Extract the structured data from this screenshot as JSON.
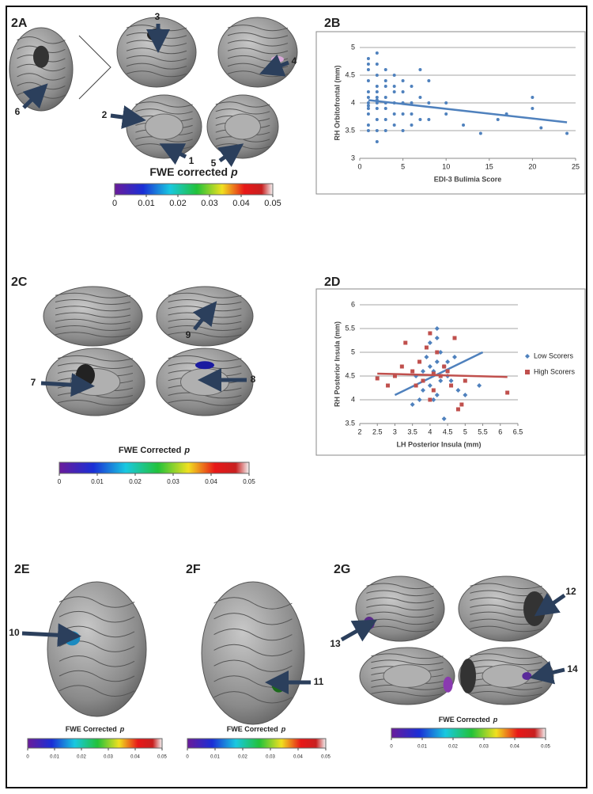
{
  "panels": [
    "2A",
    "2B",
    "2C",
    "2D",
    "2E",
    "2F",
    "2G"
  ],
  "annotations": [
    "3",
    "4",
    "2",
    "1",
    "5",
    "6",
    "9",
    "7",
    "8",
    "10",
    "11",
    "12",
    "13",
    "14"
  ],
  "colorbars": [
    {
      "title": "FWE corrected",
      "title_italic": "p",
      "ticks": [
        0,
        0.01,
        0.02,
        0.03,
        0.04,
        0.05
      ]
    },
    {
      "title": "FWE Corrected",
      "title_italic": "p",
      "ticks": [
        0,
        0.01,
        0.02,
        0.03,
        0.04,
        0.05
      ]
    },
    {
      "title": "FWE Corrected",
      "title_italic": "p",
      "ticks": [
        0,
        0.01,
        0.02,
        0.03,
        0.04,
        0.05
      ]
    },
    {
      "title": "FWE Corrected",
      "title_italic": "p",
      "ticks": [
        0,
        0.01,
        0.02,
        0.03,
        0.04,
        0.05
      ]
    },
    {
      "title": "FWE Corrected",
      "title_italic": "p",
      "ticks": [
        0,
        0.01,
        0.02,
        0.03,
        0.04,
        0.05
      ]
    }
  ],
  "chart_data": [
    {
      "type": "scatter",
      "x_label": "EDI-3 Bulimia Score",
      "y_label": "RH Orbitofrontal (mm)",
      "xlim": [
        0,
        25
      ],
      "xticks": [
        0,
        5,
        10,
        15,
        20,
        25
      ],
      "ylim": [
        3,
        5
      ],
      "yticks": [
        3,
        3.5,
        4,
        4.5,
        5
      ],
      "grid": true,
      "series": [
        {
          "color": "#4f81bd",
          "marker": "circle",
          "x": [
            1,
            1,
            1,
            1,
            1,
            1,
            1,
            1,
            1,
            1,
            2,
            2,
            2,
            2,
            2,
            2,
            2,
            2,
            2,
            2,
            3,
            3,
            3,
            3,
            3,
            3,
            3,
            4,
            4,
            4,
            4,
            4,
            4,
            5,
            5,
            5,
            5,
            5,
            6,
            6,
            6,
            6,
            7,
            7,
            7,
            8,
            8,
            8,
            10,
            10,
            12,
            14,
            16,
            17,
            20,
            20,
            21,
            24,
            1,
            2,
            3,
            1,
            2
          ],
          "values": [
            4.8,
            4.6,
            4.4,
            4.2,
            4.0,
            3.8,
            3.6,
            3.5,
            4.7,
            3.9,
            4.9,
            4.5,
            4.3,
            4.1,
            3.9,
            3.7,
            3.5,
            3.3,
            4.7,
            4.0,
            4.6,
            4.3,
            4.1,
            3.9,
            3.7,
            3.5,
            4.4,
            4.5,
            4.2,
            4.0,
            3.8,
            3.6,
            4.3,
            4.4,
            4.2,
            4.0,
            3.8,
            3.5,
            4.3,
            4.0,
            3.8,
            3.6,
            4.6,
            4.1,
            3.7,
            4.4,
            4.0,
            3.7,
            4.0,
            3.8,
            3.6,
            3.45,
            3.7,
            3.8,
            4.1,
            3.9,
            3.55,
            3.45,
            4.1,
            4.05,
            4.0,
            3.95,
            4.2
          ],
          "trend": {
            "x": [
              1,
              24
            ],
            "y": [
              4.05,
              3.65
            ]
          }
        }
      ]
    },
    {
      "type": "scatter",
      "x_label": "LH Posterior Insula (mm)",
      "y_label": "RH Posterior Insula (mm)",
      "xlim": [
        2,
        6.5
      ],
      "xticks": [
        2,
        2.5,
        3,
        3.5,
        4,
        4.5,
        5,
        5.5,
        6,
        6.5
      ],
      "ylim": [
        3.5,
        6
      ],
      "yticks": [
        3.5,
        4,
        4.5,
        5,
        5.5,
        6
      ],
      "grid": true,
      "legend": "right",
      "series": [
        {
          "name": "Low Scorers",
          "color": "#4f81bd",
          "marker": "diamond",
          "x": [
            3.5,
            3.7,
            3.8,
            4.0,
            4.1,
            4.2,
            4.3,
            4.4,
            4.5,
            4.2,
            4.0,
            3.9,
            4.6,
            4.8,
            5.0,
            3.6,
            4.1,
            4.3,
            4.2,
            4.5,
            3.8,
            4.4,
            5.4,
            4.0,
            4.7,
            4.2
          ],
          "values": [
            3.9,
            4.0,
            4.2,
            4.3,
            4.6,
            4.8,
            5.0,
            4.7,
            4.5,
            5.5,
            5.2,
            4.9,
            4.4,
            4.2,
            4.1,
            4.5,
            4.0,
            4.4,
            5.3,
            4.8,
            4.6,
            3.6,
            4.3,
            4.7,
            4.9,
            4.1
          ],
          "trend": {
            "x": [
              3,
              5.5
            ],
            "y": [
              4.1,
              5.0
            ]
          }
        },
        {
          "name": "High Scorers",
          "color": "#c0504d",
          "marker": "square",
          "x": [
            2.5,
            2.8,
            3.0,
            3.3,
            3.5,
            3.7,
            3.8,
            4.0,
            4.1,
            4.2,
            4.3,
            4.5,
            4.6,
            4.8,
            5.0,
            6.2,
            3.9,
            4.4,
            4.0,
            3.6,
            4.7,
            4.9,
            3.2,
            4.1
          ],
          "values": [
            4.45,
            4.3,
            4.5,
            5.2,
            4.6,
            4.8,
            4.4,
            5.4,
            4.2,
            5.0,
            4.5,
            4.6,
            4.3,
            3.8,
            4.4,
            4.15,
            5.1,
            4.7,
            4.0,
            4.3,
            5.3,
            3.9,
            4.7,
            4.55
          ],
          "trend": {
            "x": [
              2.5,
              6.2
            ],
            "y": [
              4.55,
              4.48
            ]
          }
        }
      ]
    }
  ]
}
